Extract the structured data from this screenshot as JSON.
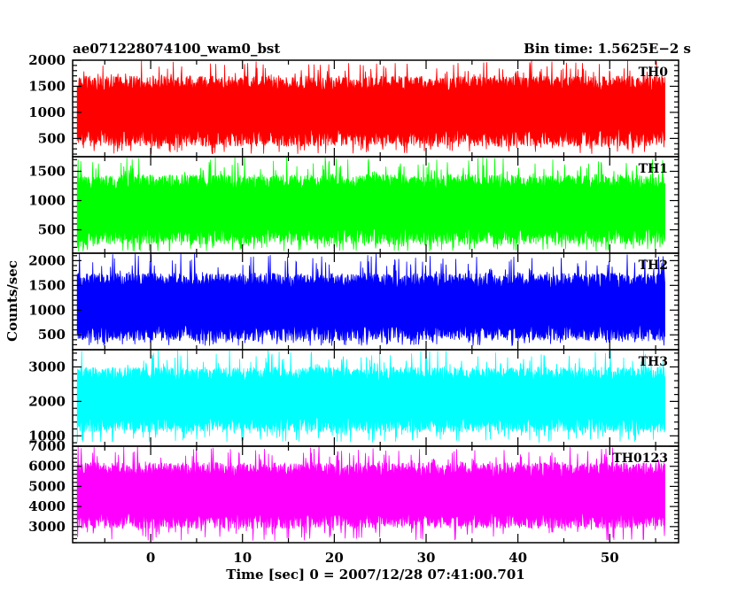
{
  "header": {
    "left_title": "ae071228074100_wam0_bst",
    "right_title": "Bin time: 1.5625E−2 s"
  },
  "chart_data": {
    "type": "line",
    "title": "ae071228074100_wam0_bst",
    "bin_time_label": "Bin time: 1.5625E−2 s",
    "xlabel": "Time [sec] 0 = 2007/12/28 07:41:00.701",
    "ylabel": "Counts/sec",
    "xlim": [
      -8.5,
      57.5
    ],
    "x_ticks": [
      0,
      10,
      20,
      30,
      40,
      50
    ],
    "x_tick_labels": [
      "0",
      "10",
      "20",
      "30",
      "40",
      "50"
    ],
    "data_x_range": [
      -8.0,
      56.0
    ],
    "grid": false,
    "panels": [
      {
        "name": "TH0",
        "color": "#ff0000",
        "ylim": [
          150,
          2000
        ],
        "y_ticks": [
          500,
          1000,
          1500,
          2000
        ],
        "y_tick_labels": [
          "500",
          "1000",
          "1500",
          "2000"
        ],
        "typical_low": 350,
        "typical_high": 1700,
        "extreme_low": 200,
        "extreme_high": 2000
      },
      {
        "name": "TH1",
        "color": "#00ff00",
        "ylim": [
          100,
          1750
        ],
        "y_ticks": [
          500,
          1000,
          1500
        ],
        "y_tick_labels": [
          "500",
          "1000",
          "1500"
        ],
        "typical_low": 250,
        "typical_high": 1450,
        "extreme_low": 130,
        "extreme_high": 1750
      },
      {
        "name": "TH2",
        "color": "#0000ff",
        "ylim": [
          200,
          2150
        ],
        "y_ticks": [
          500,
          1000,
          1500,
          2000
        ],
        "y_tick_labels": [
          "500",
          "1000",
          "1500",
          "2000"
        ],
        "typical_low": 380,
        "typical_high": 1750,
        "extreme_low": 280,
        "extreme_high": 2150
      },
      {
        "name": "TH3",
        "color": "#00ffff",
        "ylim": [
          700,
          3500
        ],
        "y_ticks": [
          1000,
          2000,
          3000
        ],
        "y_tick_labels": [
          "1000",
          "2000",
          "3000"
        ],
        "typical_low": 1100,
        "typical_high": 3000,
        "extreme_low": 800,
        "extreme_high": 3500
      },
      {
        "name": "TH0123",
        "color": "#ff00ff",
        "ylim": [
          2200,
          7000
        ],
        "y_ticks": [
          3000,
          4000,
          5000,
          6000,
          7000
        ],
        "y_tick_labels": [
          "3000",
          "4000",
          "5000",
          "6000",
          "7000"
        ],
        "typical_low": 2900,
        "typical_high": 6200,
        "extreme_low": 2300,
        "extreme_high": 7000
      }
    ]
  }
}
